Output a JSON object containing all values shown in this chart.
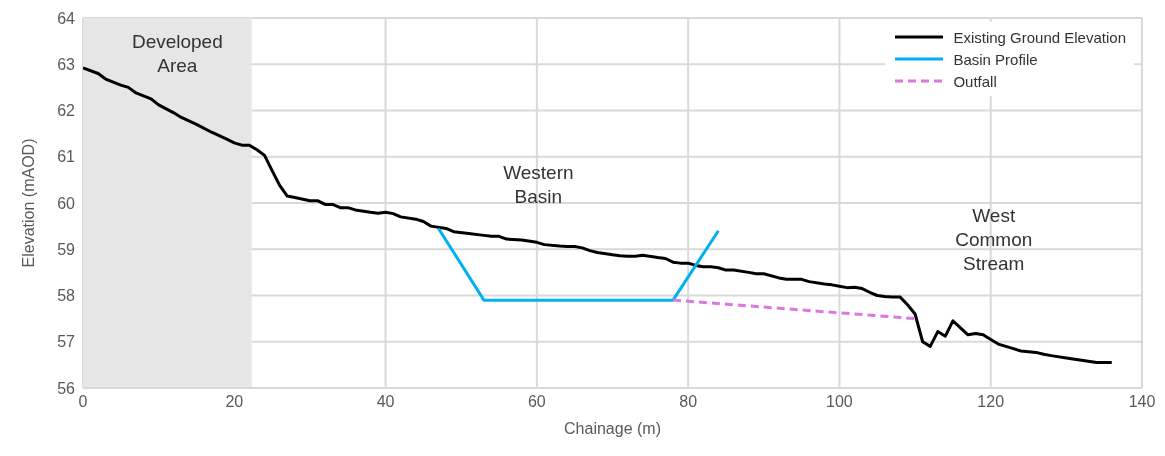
{
  "chart_data": {
    "type": "line",
    "xlabel": "Chainage (m)",
    "ylabel": "Elevation (mAOD)",
    "xlim": [
      0,
      140
    ],
    "xticks": [
      0,
      20,
      40,
      60,
      80,
      100,
      120,
      140
    ],
    "ylim": [
      56,
      64
    ],
    "yticks": [
      56,
      57,
      58,
      59,
      60,
      61,
      62,
      63,
      64
    ],
    "grid": true,
    "legend": "top right",
    "marker": "none",
    "series": [
      {
        "name": "Existing Ground Elevation",
        "color": "#000000",
        "line_style": "solid",
        "x": [
          0,
          2,
          3,
          5,
          6,
          7,
          9,
          10,
          12,
          13,
          15,
          17,
          19,
          20,
          21,
          22,
          23,
          24,
          25,
          26,
          27,
          28,
          30,
          31,
          32,
          33,
          34,
          35,
          36,
          38,
          39,
          40,
          41,
          42,
          44,
          45,
          46,
          48,
          49,
          51,
          53,
          54,
          55,
          56,
          58,
          60,
          61,
          63,
          64,
          65,
          66,
          67,
          68,
          70,
          71,
          72,
          73,
          74,
          76,
          77,
          78,
          79,
          80,
          81,
          82,
          83,
          84,
          85,
          86,
          88,
          89,
          90,
          92,
          93,
          94,
          95,
          96,
          98,
          99,
          100,
          101,
          102,
          103,
          104,
          105,
          106,
          107,
          108,
          109,
          110,
          111,
          112,
          113,
          114,
          115,
          116,
          117,
          118,
          119,
          120,
          121,
          122,
          123,
          124,
          126,
          127,
          128,
          130,
          132,
          134,
          136
        ],
        "values": [
          62.92,
          62.8,
          62.68,
          62.55,
          62.5,
          62.38,
          62.25,
          62.12,
          61.95,
          61.85,
          61.7,
          61.53,
          61.38,
          61.3,
          61.25,
          61.25,
          61.15,
          61.03,
          60.7,
          60.38,
          60.15,
          60.12,
          60.05,
          60.05,
          59.97,
          59.97,
          59.9,
          59.9,
          59.85,
          59.8,
          59.78,
          59.8,
          59.77,
          59.7,
          59.65,
          59.6,
          59.5,
          59.45,
          59.38,
          59.34,
          59.3,
          59.28,
          59.28,
          59.22,
          59.2,
          59.15,
          59.1,
          59.07,
          59.06,
          59.06,
          59.03,
          58.97,
          58.93,
          58.88,
          58.86,
          58.85,
          58.85,
          58.87,
          58.82,
          58.8,
          58.72,
          58.7,
          58.7,
          58.65,
          58.62,
          58.62,
          58.6,
          58.55,
          58.55,
          58.5,
          58.47,
          58.47,
          58.38,
          58.35,
          58.35,
          58.35,
          58.3,
          58.25,
          58.23,
          58.2,
          58.17,
          58.18,
          58.15,
          58.07,
          58,
          57.98,
          57.97,
          57.97,
          57.8,
          57.6,
          57,
          56.9,
          57.22,
          57.12,
          57.45,
          57.3,
          57.15,
          57.18,
          57.15,
          57.05,
          56.95,
          56.9,
          56.85,
          56.8,
          56.77,
          56.73,
          56.7,
          56.65,
          56.6,
          56.55,
          56.55
        ]
      },
      {
        "name": "Basin Profile",
        "color": "#00b0f0",
        "line_style": "solid",
        "x": [
          47,
          53,
          78,
          84
        ],
        "values": [
          59.45,
          57.9,
          57.9,
          59.4
        ]
      },
      {
        "name": "Outfall",
        "color": "#dd77dd",
        "line_style": "dashed",
        "x": [
          78,
          110
        ],
        "values": [
          57.9,
          57.5
        ]
      }
    ],
    "bands": [
      {
        "axis": "x",
        "from": 0,
        "to": 22.3,
        "label": "Developed Area",
        "color": "#e6e6e6"
      }
    ],
    "annotations": [
      "Western Basin",
      "West Common Stream"
    ]
  }
}
